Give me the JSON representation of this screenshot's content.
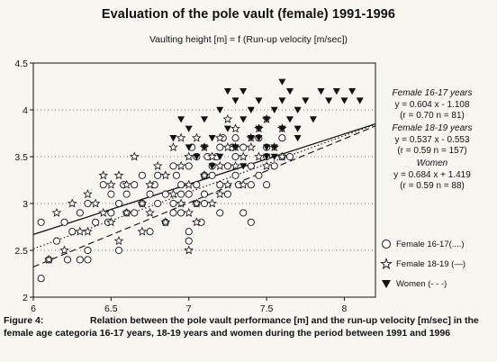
{
  "chart_data": {
    "type": "scatter",
    "title": "Evaluation of the pole vault (female) 1991-1996",
    "subtitle": "Vaulting height [m] = f (Run-up velocity [m/sec])",
    "xlim": [
      6,
      8.2
    ],
    "ylim": [
      2,
      4.5
    ],
    "x_ticks": [
      "6",
      "6.5",
      "7",
      "7.5",
      "8"
    ],
    "y_ticks": [
      "2",
      "2.5",
      "3",
      "3.5",
      "4",
      "4.5"
    ],
    "grid": "dotted-horizontal",
    "series": [
      {
        "name": "Female 16-17",
        "style": "(....)",
        "marker": "open-circle",
        "line": {
          "slope": 0.604,
          "intercept": -1.108,
          "dash": "dotted"
        },
        "points": [
          [
            6.05,
            2.2
          ],
          [
            6.05,
            2.8
          ],
          [
            6.1,
            2.4
          ],
          [
            6.15,
            2.6
          ],
          [
            6.2,
            2.8
          ],
          [
            6.22,
            2.4
          ],
          [
            6.25,
            2.7
          ],
          [
            6.3,
            2.9
          ],
          [
            6.3,
            2.4
          ],
          [
            6.35,
            2.5
          ],
          [
            6.35,
            2.4
          ],
          [
            6.35,
            3.0
          ],
          [
            6.4,
            2.8
          ],
          [
            6.45,
            3.2
          ],
          [
            6.5,
            2.9
          ],
          [
            6.5,
            3.1
          ],
          [
            6.55,
            2.5
          ],
          [
            6.55,
            3.0
          ],
          [
            6.6,
            2.9
          ],
          [
            6.6,
            3.1
          ],
          [
            6.65,
            3.2
          ],
          [
            6.7,
            3.0
          ],
          [
            6.7,
            3.3
          ],
          [
            6.75,
            3.1
          ],
          [
            6.8,
            3.0
          ],
          [
            6.8,
            3.3
          ],
          [
            6.85,
            3.1
          ],
          [
            6.9,
            3.0
          ],
          [
            6.9,
            3.4
          ],
          [
            6.95,
            3.2
          ],
          [
            6.95,
            2.9
          ],
          [
            7.0,
            2.6
          ],
          [
            7.0,
            2.7
          ],
          [
            7.0,
            3.1
          ],
          [
            7.0,
            3.4
          ],
          [
            7.05,
            3.2
          ],
          [
            7.05,
            3.5
          ],
          [
            7.1,
            3.3
          ],
          [
            7.1,
            3.0
          ],
          [
            7.15,
            3.4
          ],
          [
            7.2,
            3.2
          ],
          [
            7.2,
            3.6
          ],
          [
            7.25,
            3.4
          ],
          [
            7.3,
            3.3
          ],
          [
            7.3,
            3.5
          ],
          [
            7.35,
            3.6
          ],
          [
            7.4,
            3.4
          ],
          [
            7.45,
            3.3
          ],
          [
            7.5,
            3.5
          ],
          [
            7.5,
            3.6
          ],
          [
            7.55,
            3.4
          ],
          [
            7.6,
            3.5
          ],
          [
            7.65,
            3.5
          ],
          [
            7.1,
            3.1
          ],
          [
            7.2,
            2.9
          ],
          [
            6.9,
            2.9
          ],
          [
            7.25,
            3.1
          ],
          [
            7.35,
            2.9
          ],
          [
            7.4,
            2.8
          ],
          [
            6.95,
            3.1
          ],
          [
            7.05,
            3.0
          ],
          [
            7.15,
            3.3
          ],
          [
            6.75,
            2.7
          ],
          [
            7.3,
            3.7
          ],
          [
            7.45,
            3.7
          ],
          [
            7.6,
            3.7
          ],
          [
            6.85,
            2.8
          ],
          [
            7.4,
            3.2
          ],
          [
            7.5,
            3.2
          ],
          [
            6.65,
            2.9
          ],
          [
            7.02,
            3.6
          ],
          [
            7.12,
            3.5
          ],
          [
            7.22,
            3.7
          ],
          [
            7.32,
            3.2
          ],
          [
            6.58,
            3.2
          ],
          [
            6.48,
            2.8
          ],
          [
            7.08,
            2.8
          ],
          [
            6.92,
            3.3
          ],
          [
            7.18,
            3.5
          ],
          [
            7.28,
            3.6
          ],
          [
            6.78,
            3.2
          ]
        ]
      },
      {
        "name": "Female 18-19",
        "style": "(—)",
        "marker": "open-star",
        "line": {
          "slope": 0.537,
          "intercept": -0.553,
          "dash": "solid"
        },
        "points": [
          [
            6.1,
            2.4
          ],
          [
            6.15,
            2.9
          ],
          [
            6.2,
            2.5
          ],
          [
            6.25,
            3.0
          ],
          [
            6.3,
            2.7
          ],
          [
            6.35,
            3.1
          ],
          [
            6.4,
            3.0
          ],
          [
            6.45,
            3.3
          ],
          [
            6.5,
            2.8
          ],
          [
            6.5,
            3.2
          ],
          [
            6.55,
            3.3
          ],
          [
            6.55,
            2.6
          ],
          [
            6.6,
            3.2
          ],
          [
            6.65,
            3.5
          ],
          [
            6.7,
            3.0
          ],
          [
            6.75,
            3.2
          ],
          [
            6.8,
            3.4
          ],
          [
            6.85,
            3.3
          ],
          [
            6.85,
            2.8
          ],
          [
            6.9,
            3.6
          ],
          [
            6.95,
            3.4
          ],
          [
            6.95,
            3.0
          ],
          [
            7.0,
            3.5
          ],
          [
            7.0,
            3.2
          ],
          [
            7.0,
            2.5
          ],
          [
            7.05,
            3.7
          ],
          [
            7.05,
            3.0
          ],
          [
            7.1,
            3.6
          ],
          [
            7.1,
            3.3
          ],
          [
            7.15,
            3.5
          ],
          [
            7.2,
            3.7
          ],
          [
            7.2,
            3.1
          ],
          [
            7.25,
            3.6
          ],
          [
            7.25,
            3.2
          ],
          [
            7.3,
            3.8
          ],
          [
            7.3,
            3.4
          ],
          [
            7.35,
            3.5
          ],
          [
            7.4,
            3.7
          ],
          [
            7.4,
            3.6
          ],
          [
            7.45,
            3.5
          ],
          [
            7.5,
            3.4
          ],
          [
            7.5,
            3.9
          ],
          [
            7.55,
            3.6
          ],
          [
            7.6,
            3.5
          ],
          [
            7.6,
            3.8
          ],
          [
            6.6,
            2.9
          ],
          [
            6.7,
            2.7
          ],
          [
            6.75,
            2.9
          ],
          [
            6.9,
            3.1
          ],
          [
            7.0,
            2.9
          ],
          [
            7.05,
            2.8
          ],
          [
            7.15,
            3.0
          ],
          [
            7.2,
            3.4
          ],
          [
            7.35,
            3.2
          ],
          [
            6.45,
            2.9
          ],
          [
            6.35,
            2.7
          ],
          [
            6.95,
            3.7
          ],
          [
            7.3,
            3.6
          ],
          [
            7.45,
            3.8
          ],
          [
            7.25,
            3.9
          ]
        ]
      },
      {
        "name": "Women",
        "style": "(- - -)",
        "marker": "filled-triangle-down",
        "line": {
          "slope": 0.684,
          "intercept": 1.419,
          "dash": "dashed"
        },
        "points": [
          [
            6.9,
            3.7
          ],
          [
            6.95,
            3.9
          ],
          [
            7.0,
            3.6
          ],
          [
            7.05,
            3.5
          ],
          [
            7.1,
            3.9
          ],
          [
            7.15,
            3.7
          ],
          [
            7.2,
            4.0
          ],
          [
            7.2,
            3.5
          ],
          [
            7.25,
            3.8
          ],
          [
            7.3,
            4.1
          ],
          [
            7.3,
            3.6
          ],
          [
            7.35,
            3.9
          ],
          [
            7.35,
            3.4
          ],
          [
            7.4,
            4.0
          ],
          [
            7.4,
            3.7
          ],
          [
            7.45,
            4.1
          ],
          [
            7.45,
            3.8
          ],
          [
            7.5,
            3.9
          ],
          [
            7.5,
            3.5
          ],
          [
            7.55,
            4.0
          ],
          [
            7.55,
            3.6
          ],
          [
            7.6,
            4.1
          ],
          [
            7.6,
            3.8
          ],
          [
            7.65,
            3.9
          ],
          [
            7.65,
            4.2
          ],
          [
            7.7,
            4.0
          ],
          [
            7.7,
            3.7
          ],
          [
            7.75,
            4.1
          ],
          [
            7.8,
            3.9
          ],
          [
            7.85,
            4.2
          ],
          [
            7.9,
            4.1
          ],
          [
            7.95,
            4.2
          ],
          [
            8.0,
            4.1
          ],
          [
            8.05,
            4.2
          ],
          [
            8.1,
            4.1
          ],
          [
            7.25,
            4.2
          ],
          [
            7.0,
            3.8
          ],
          [
            7.15,
            3.4
          ],
          [
            7.1,
            3.6
          ],
          [
            7.5,
            3.6
          ],
          [
            7.6,
            4.3
          ],
          [
            7.35,
            4.2
          ],
          [
            7.45,
            3.7
          ],
          [
            7.55,
            3.5
          ],
          [
            7.7,
            3.8
          ]
        ]
      }
    ]
  },
  "annotations": [
    {
      "heading": "Female 16-17 years",
      "eq": "y = 0.604 x - 1.108",
      "stats": "(r = 0.70   n = 81)"
    },
    {
      "heading": "Female 18-19 years",
      "eq": "y = 0.537 x - 0.553",
      "stats": "(r = 0.59   n = 157)"
    },
    {
      "heading": "Women",
      "eq": "y = 0.684 x + 1.419",
      "stats": "(r = 0.59   n = 88)"
    }
  ],
  "caption": {
    "label": "Figure 4:",
    "text": "Relation between the pole vault performance [m] and the run-up velocity [m/sec] in the female age categoria 16-17 years, 18-19 years and women during the period between 1991 and 1996"
  }
}
